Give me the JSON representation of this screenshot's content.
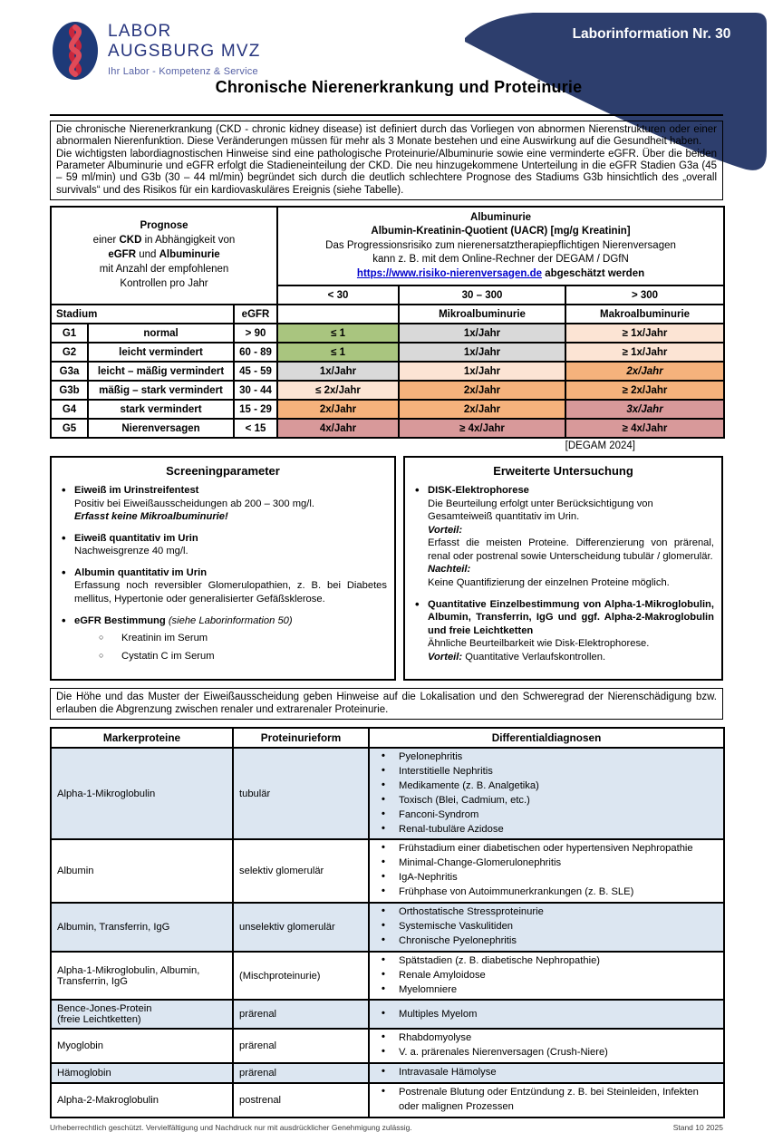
{
  "colors": {
    "navy": "#2d3e6d",
    "logo_blue": "#27357e",
    "logo_red": "#c8273d",
    "tagline_blue": "#5661a5",
    "link_blue": "#0000cc",
    "row_shade_blue": "#dce6f1",
    "cell_green": "#a9c57f",
    "cell_gray": "#d9d9d9",
    "cell_peach": "#fce4d4",
    "cell_orange": "#f5b27c",
    "cell_pink": "#d8999a"
  },
  "header": {
    "logo_line1": "LABOR",
    "logo_line2": "AUGSBURG MVZ",
    "logo_tagline": "Ihr Labor - Kompetenz & Service",
    "banner": "Laborinformation Nr. 30",
    "title": "Chronische Nierenerkrankung und Proteinurie"
  },
  "intro": {
    "para1": "Die chronische Nierenerkrankung (CKD - chronic kidney disease) ist definiert durch das Vorliegen von abnormen Nierenstrukturen oder einer abnormalen Nierenfunktion. Diese Veränderungen müssen für mehr als 3 Monate bestehen und eine Auswirkung auf die Gesundheit haben.",
    "para2": "Die wichtigsten labordiagnostischen Hinweise sind eine pathologische Proteinurie/Albuminurie sowie eine verminderte eGFR. Über die beiden Parameter Albuminurie und eGFR erfolgt die Stadieneinteilung der CKD. Die neu hinzugekommene Unterteilung in die eGFR Stadien G3a (45 – 59 ml/min) und G3b (30 – 44 ml/min) begründet sich durch die deutlich schlechtere Prognose des Stadiums G3b hinsichtlich des „overall survivals“ und des Risikos für ein kardiovaskuläres Ereignis (siehe Tabelle)."
  },
  "stage_table": {
    "prognosis": {
      "t1": "Prognose",
      "t2a": "einer ",
      "t2b": "CKD",
      "t2c": " in Abhängigkeit von",
      "t3a": "eGFR",
      "t3b": " und ",
      "t3c": "Albuminurie",
      "t4": "mit Anzahl der empfohlenen",
      "t5": "Kontrollen pro Jahr"
    },
    "albuminuria": {
      "t1": "Albuminurie",
      "t2": "Albumin-Kreatinin-Quotient (UACR) [mg/g Kreatinin]",
      "t3": "Das Progressionsrisiko zum nierenersatztherapiepflichtigen Nierenversagen",
      "t4": "kann z. B. mit dem Online-Rechner der DEGAM / DGfN",
      "link": "https://www.risiko-nierenversagen.de",
      "t5": " abgeschätzt werden"
    },
    "range_cols": [
      "< 30",
      "30 – 300",
      "> 300"
    ],
    "col_headers": {
      "stadium": "Stadium",
      "egfr": "eGFR",
      "micro": "Mikroalbuminurie",
      "macro": "Makroalbuminurie"
    },
    "rows": [
      {
        "code": "G1",
        "desc": "normal",
        "egfr": "> 90",
        "c1": {
          "t": "≤ 1",
          "k": "green"
        },
        "c2": {
          "t": "1x/Jahr",
          "k": "gray"
        },
        "c3": {
          "t": "≥ 1x/Jahr",
          "k": "peach"
        }
      },
      {
        "code": "G2",
        "desc": "leicht vermindert",
        "egfr": "60 - 89",
        "c1": {
          "t": "≤ 1",
          "k": "green"
        },
        "c2": {
          "t": "1x/Jahr",
          "k": "gray"
        },
        "c3": {
          "t": "≥ 1x/Jahr",
          "k": "peach"
        }
      },
      {
        "code": "G3a",
        "desc": "leicht – mäßig vermindert",
        "egfr": "45 - 59",
        "c1": {
          "t": "1x/Jahr",
          "k": "gray"
        },
        "c2": {
          "t": "1x/Jahr",
          "k": "peach"
        },
        "c3": {
          "t": "2x/Jahr",
          "k": "orange i"
        }
      },
      {
        "code": "G3b",
        "desc": "mäßig – stark vermindert",
        "egfr": "30 - 44",
        "c1": {
          "t": "≤ 2x/Jahr",
          "k": "peach"
        },
        "c2": {
          "t": "2x/Jahr",
          "k": "orange"
        },
        "c3": {
          "t": "≥ 2x/Jahr",
          "k": "orange"
        }
      },
      {
        "code": "G4",
        "desc": "stark vermindert",
        "egfr": "15 - 29",
        "c1": {
          "t": "2x/Jahr",
          "k": "orange"
        },
        "c2": {
          "t": "2x/Jahr",
          "k": "orange"
        },
        "c3": {
          "t": "3x/Jahr",
          "k": "pink i"
        }
      },
      {
        "code": "G5",
        "desc": "Nierenversagen",
        "egfr": "< 15",
        "c1": {
          "t": "4x/Jahr",
          "k": "pink"
        },
        "c2": {
          "t": "≥ 4x/Jahr",
          "k": "pink"
        },
        "c3": {
          "t": "≥ 4x/Jahr",
          "k": "pink"
        }
      }
    ],
    "source": "[DEGAM 2024]"
  },
  "screening": {
    "title": "Screeningparameter",
    "items": [
      {
        "head": "Eiweiß im Urinstreifentest",
        "body": "Positiv bei Eiweißausscheidungen ab 200 – 300 mg/l.",
        "note": "Erfasst keine Mikroalbuminurie!"
      },
      {
        "head": "Eiweiß quantitativ im Urin",
        "body": "Nachweisgrenze 40 mg/l."
      },
      {
        "head": "Albumin quantitativ im Urin",
        "body": "Erfassung noch reversibler Glomerulopathien, z. B. bei Diabetes mellitus, Hypertonie oder generalisierter Gefäßsklerose."
      },
      {
        "head": "eGFR Bestimmung",
        "head_note": "(siehe Laborinformation 50)",
        "sub": [
          "Kreatinin im Serum",
          "Cystatin C im Serum"
        ]
      }
    ]
  },
  "extended": {
    "title": "Erweiterte Untersuchung",
    "item1": {
      "head": "DISK-Elektrophorese",
      "body1": "Die Beurteilung erfolgt unter Berücksichtigung von Gesamteiweiß quantitativ im Urin.",
      "label_pro": "Vorteil:",
      "pro": "Erfasst die meisten Proteine. Differenzierung von prärenal, renal oder postrenal sowie Unterscheidung tubulär / glomerulär.",
      "label_con": "Nachteil:",
      "con": "Keine Quantifizierung der einzelnen Proteine möglich."
    },
    "item2": {
      "head": "Quantitative Einzelbestimmung von Alpha-1-Mikroglobulin, Albumin, Transferrin, IgG und ggf. Alpha-2-Makroglobulin und freie Leichtketten",
      "body1": "Ähnliche Beurteilbarkeit wie Disk-Elektrophorese.",
      "label_pro": "Vorteil:",
      "pro": " Quantitative Verlaufskontrollen."
    }
  },
  "note": "Die Höhe und das Muster der Eiweißausscheidung geben Hinweise auf die Lokalisation und den Schweregrad der Nierenschädigung bzw. erlauben die Abgrenzung zwischen renaler und extrarenaler Proteinurie.",
  "marker_table": {
    "headers": [
      "Markerproteine",
      "Proteinurieform",
      "Differentialdiagnosen"
    ],
    "rows": [
      {
        "protein": "Alpha-1-Mikroglobulin",
        "form": "tubulär",
        "diagnoses": [
          "Pyelonephritis",
          "Interstitielle Nephritis",
          "Medikamente (z. B. Analgetika)",
          "Toxisch (Blei, Cadmium, etc.)",
          "Fanconi-Syndrom",
          "Renal-tubuläre Azidose"
        ],
        "shaded": true
      },
      {
        "protein": "Albumin",
        "form": "selektiv glomerulär",
        "diagnoses": [
          "Frühstadium einer diabetischen oder hypertensiven Nephropathie",
          "Minimal-Change-Glomerulonephritis",
          "IgA-Nephritis",
          "Frühphase von Autoimmunerkrankungen (z. B. SLE)"
        ],
        "shaded": false
      },
      {
        "protein": "Albumin, Transferrin, IgG",
        "form": "unselektiv glomerulär",
        "diagnoses": [
          "Orthostatische Stressproteinurie",
          "Systemische Vaskulitiden",
          "Chronische Pyelonephritis"
        ],
        "shaded": true
      },
      {
        "protein": "Alpha-1-Mikroglobulin, Albumin,",
        "protein2": "Transferrin, IgG",
        "form": "(Mischproteinurie)",
        "diagnoses": [
          "Spätstadien (z. B. diabetische Nephropathie)",
          "Renale Amyloidose",
          "Myelomniere"
        ],
        "shaded": false
      },
      {
        "protein": "Bence-Jones-Protein",
        "protein2": "(freie Leichtketten)",
        "form": "prärenal",
        "diagnoses": [
          "Multiples Myelom"
        ],
        "shaded": true
      },
      {
        "protein": "Myoglobin",
        "form": "prärenal",
        "diagnoses": [
          "Rhabdomyolyse",
          "V. a. prärenales Nierenversagen (Crush-Niere)"
        ],
        "shaded": false
      },
      {
        "protein": "Hämoglobin",
        "form": "prärenal",
        "diagnoses": [
          "Intravasale Hämolyse"
        ],
        "shaded": true
      },
      {
        "protein": "Alpha-2-Makroglobulin",
        "form": "postrenal",
        "diagnoses": [
          "Postrenale Blutung oder Entzündung z. B. bei Steinleiden, Infekten oder malignen Prozessen"
        ],
        "shaded": false
      }
    ]
  },
  "footer": {
    "left": "Urheberrechtlich geschützt. Vervielfältigung und Nachdruck nur mit ausdrücklicher Genehmigung zulässig.",
    "right": "Stand 10 2025"
  }
}
